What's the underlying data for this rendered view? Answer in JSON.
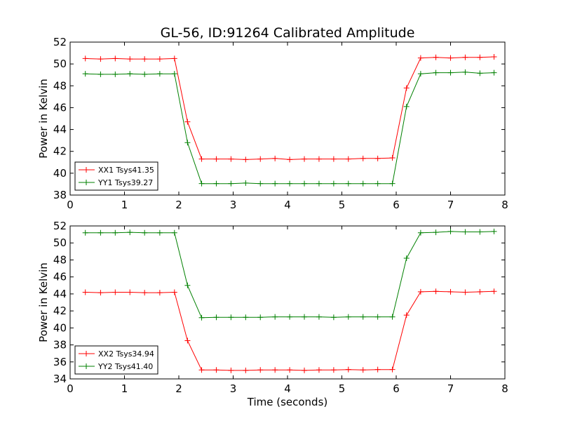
{
  "figure": {
    "title": "GL-56, ID:91264 Calibrated Amplitude"
  },
  "chart_data": [
    {
      "type": "line",
      "title": "GL-56, ID:91264 Calibrated Amplitude",
      "xlabel": "",
      "ylabel": "Power in Kelvin",
      "xlim": [
        0,
        8
      ],
      "ylim": [
        38,
        52
      ],
      "xticks": [
        "0",
        "1",
        "2",
        "3",
        "4",
        "5",
        "6",
        "7",
        "8"
      ],
      "yticks": [
        "38",
        "40",
        "42",
        "44",
        "46",
        "48",
        "50",
        "52"
      ],
      "grid": false,
      "legend": "lower-left",
      "x": [
        0.28,
        0.56,
        0.83,
        1.1,
        1.37,
        1.65,
        1.92,
        2.16,
        2.42,
        2.69,
        2.96,
        3.23,
        3.5,
        3.77,
        4.04,
        4.31,
        4.58,
        4.85,
        5.12,
        5.39,
        5.66,
        5.93,
        6.19,
        6.45,
        6.73,
        7.0,
        7.27,
        7.54,
        7.8
      ],
      "series": [
        {
          "name": "XX1 Tsys41.35",
          "color": "#ff0000",
          "values": [
            50.5,
            50.45,
            50.5,
            50.45,
            50.45,
            50.45,
            50.5,
            44.7,
            41.3,
            41.3,
            41.3,
            41.25,
            41.3,
            41.35,
            41.25,
            41.3,
            41.3,
            41.3,
            41.3,
            41.35,
            41.35,
            41.4,
            47.8,
            50.55,
            50.6,
            50.55,
            50.6,
            50.6,
            50.65
          ]
        },
        {
          "name": "YY1 Tsys39.27",
          "color": "#008000",
          "values": [
            49.1,
            49.05,
            49.05,
            49.1,
            49.05,
            49.1,
            49.1,
            42.8,
            39.05,
            39.05,
            39.05,
            39.1,
            39.05,
            39.05,
            39.05,
            39.05,
            39.05,
            39.05,
            39.05,
            39.05,
            39.05,
            39.05,
            46.1,
            49.1,
            49.2,
            49.2,
            49.25,
            49.15,
            49.2
          ]
        }
      ]
    },
    {
      "type": "line",
      "title": "",
      "xlabel": "Time (seconds)",
      "ylabel": "Power in Kelvin",
      "xlim": [
        0,
        8
      ],
      "ylim": [
        34,
        52
      ],
      "xticks": [
        "0",
        "1",
        "2",
        "3",
        "4",
        "5",
        "6",
        "7",
        "8"
      ],
      "yticks": [
        "34",
        "36",
        "38",
        "40",
        "42",
        "44",
        "46",
        "48",
        "50",
        "52"
      ],
      "grid": false,
      "legend": "lower-left",
      "x": [
        0.28,
        0.56,
        0.83,
        1.1,
        1.37,
        1.65,
        1.92,
        2.16,
        2.42,
        2.69,
        2.96,
        3.23,
        3.5,
        3.77,
        4.04,
        4.31,
        4.58,
        4.85,
        5.12,
        5.39,
        5.66,
        5.93,
        6.19,
        6.45,
        6.73,
        7.0,
        7.27,
        7.54,
        7.8
      ],
      "series": [
        {
          "name": "XX2 Tsys34.94",
          "color": "#ff0000",
          "values": [
            44.2,
            44.15,
            44.2,
            44.2,
            44.15,
            44.15,
            44.2,
            38.5,
            35.05,
            35.05,
            35.0,
            35.0,
            35.05,
            35.05,
            35.05,
            35.0,
            35.05,
            35.05,
            35.1,
            35.05,
            35.1,
            35.1,
            41.5,
            44.25,
            44.3,
            44.25,
            44.2,
            44.25,
            44.3
          ]
        },
        {
          "name": "YY2 Tsys41.40",
          "color": "#008000",
          "values": [
            51.2,
            51.2,
            51.2,
            51.25,
            51.2,
            51.2,
            51.2,
            45.0,
            41.2,
            41.25,
            41.25,
            41.25,
            41.25,
            41.3,
            41.3,
            41.3,
            41.3,
            41.25,
            41.3,
            41.3,
            41.3,
            41.3,
            48.2,
            51.2,
            51.25,
            51.35,
            51.3,
            51.3,
            51.35
          ]
        }
      ]
    }
  ]
}
